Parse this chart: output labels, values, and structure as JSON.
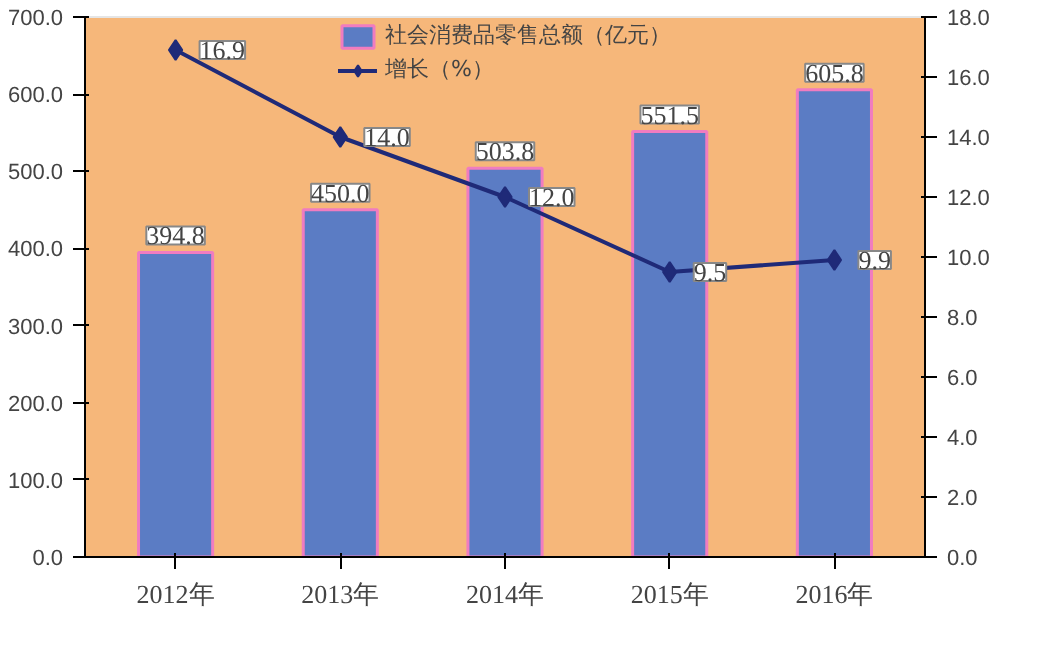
{
  "chart_data": {
    "type": "bar",
    "categories": [
      "2012年",
      "2013年",
      "2014年",
      "2015年",
      "2016年"
    ],
    "series": [
      {
        "name": "社会消费品零售总额（亿元）",
        "color": "#5b7cc4",
        "values": [
          394.8,
          450.0,
          503.8,
          551.5,
          605.8
        ],
        "value_labels": [
          "394.8",
          "450.0",
          "503.8",
          "551.5",
          "605.8"
        ]
      },
      {
        "name": "增长（%）",
        "type": "line",
        "axis": "y2",
        "color": "#1f2a78",
        "values": [
          16.9,
          14.0,
          12.0,
          9.5,
          9.9
        ],
        "value_labels": [
          "16.9",
          "14.0",
          "12.0",
          "9.5",
          "9.9"
        ]
      }
    ],
    "ylim": [
      0,
      700
    ],
    "yticks": [
      {
        "value": 0,
        "label": "0.0"
      },
      {
        "value": 100,
        "label": "100.0"
      },
      {
        "value": 200,
        "label": "200.0"
      },
      {
        "value": 300,
        "label": "300.0"
      },
      {
        "value": 400,
        "label": "400.0"
      },
      {
        "value": 500,
        "label": "500.0"
      },
      {
        "value": 600,
        "label": "600.0"
      },
      {
        "value": 700,
        "label": "700.0"
      }
    ],
    "y2lim": [
      0,
      18
    ],
    "y2ticks": [
      {
        "value": 0,
        "label": "0.0"
      },
      {
        "value": 2,
        "label": "2.0"
      },
      {
        "value": 4,
        "label": "4.0"
      },
      {
        "value": 6,
        "label": "6.0"
      },
      {
        "value": 8,
        "label": "8.0"
      },
      {
        "value": 10,
        "label": "10.0"
      },
      {
        "value": 12,
        "label": "12.0"
      },
      {
        "value": 14,
        "label": "14.0"
      },
      {
        "value": 16,
        "label": "16.0"
      },
      {
        "value": 18,
        "label": "18.0"
      }
    ],
    "marker": "diamond",
    "legend": "top",
    "grid": false
  }
}
